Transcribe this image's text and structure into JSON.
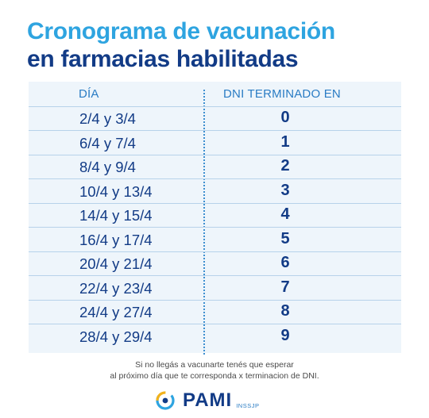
{
  "title": {
    "line1": "Cronograma de vacunación",
    "line2": "en farmacias habilitadas"
  },
  "table": {
    "headers": {
      "day": "DÍA",
      "dni": "DNI TERMINADO EN"
    },
    "rows": [
      {
        "day": "2/4 y 3/4",
        "dni": "0"
      },
      {
        "day": "6/4 y 7/4",
        "dni": "1"
      },
      {
        "day": "8/4 y 9/4",
        "dni": "2"
      },
      {
        "day": "10/4 y 13/4",
        "dni": "3"
      },
      {
        "day": "14/4 y 15/4",
        "dni": "4"
      },
      {
        "day": "16/4 y 17/4",
        "dni": "5"
      },
      {
        "day": "20/4 y 21/4",
        "dni": "6"
      },
      {
        "day": "22/4 y 23/4",
        "dni": "7"
      },
      {
        "day": "24/4 y 27/4",
        "dni": "8"
      },
      {
        "day": "28/4 y 29/4",
        "dni": "9"
      }
    ]
  },
  "note": {
    "line1": "Si no llegás a vacunarte tenés que esperar",
    "line2": "al próximo día que te corresponda x terminacion de DNI."
  },
  "logo": {
    "name": "PAMI",
    "sub": "INSSJP",
    "icon": "pami-logo-icon"
  },
  "colors": {
    "title_light": "#2ea4e0",
    "title_dark": "#123b86",
    "table_bg": "#eef5fb",
    "header_text": "#2a7cc4"
  }
}
